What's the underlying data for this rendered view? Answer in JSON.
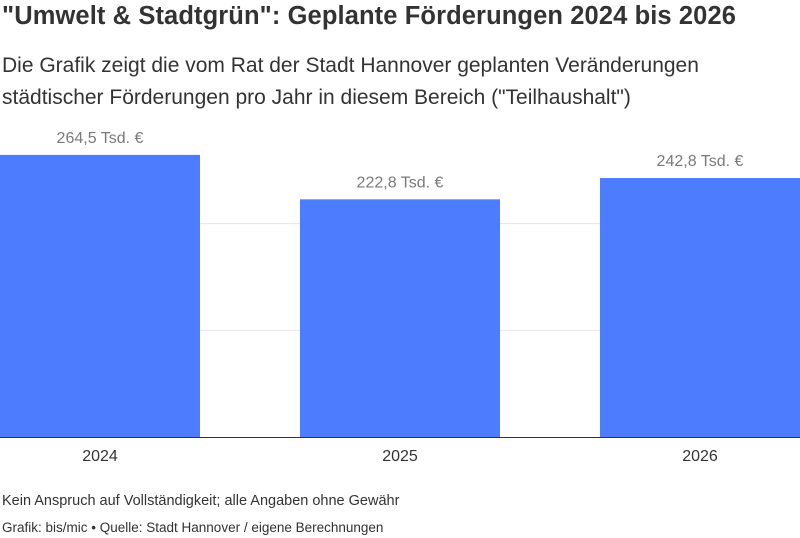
{
  "title": "\"Umwelt & Stadtgrün\": Geplante Förderungen 2024 bis 2026",
  "subtitle": "Die Grafik zeigt die vom Rat der Stadt Hannover geplanten Veränderungen städtischer Förderungen pro Jahr in diesem Bereich (\"Teilhaushalt\")",
  "notes": "Kein Anspruch auf Vollständigkeit; alle Angaben ohne Gewähr",
  "credit": "Grafik: bis/mic • Quelle: Stadt Hannover / eigene Berechnungen",
  "chart_data": {
    "type": "bar",
    "categories": [
      "2024",
      "2025",
      "2026"
    ],
    "values": [
      264.5,
      222.8,
      242.8
    ],
    "data_labels": [
      "264,5 Tsd. €",
      "222,8 Tsd. €",
      "242,8 Tsd. €"
    ],
    "ylim": [
      0,
      300
    ],
    "grid": true,
    "colors": {
      "bar": "#4d7cfe",
      "grid": "#e6e6e6",
      "axis": "#333333",
      "label": "#7a7a7a"
    }
  }
}
